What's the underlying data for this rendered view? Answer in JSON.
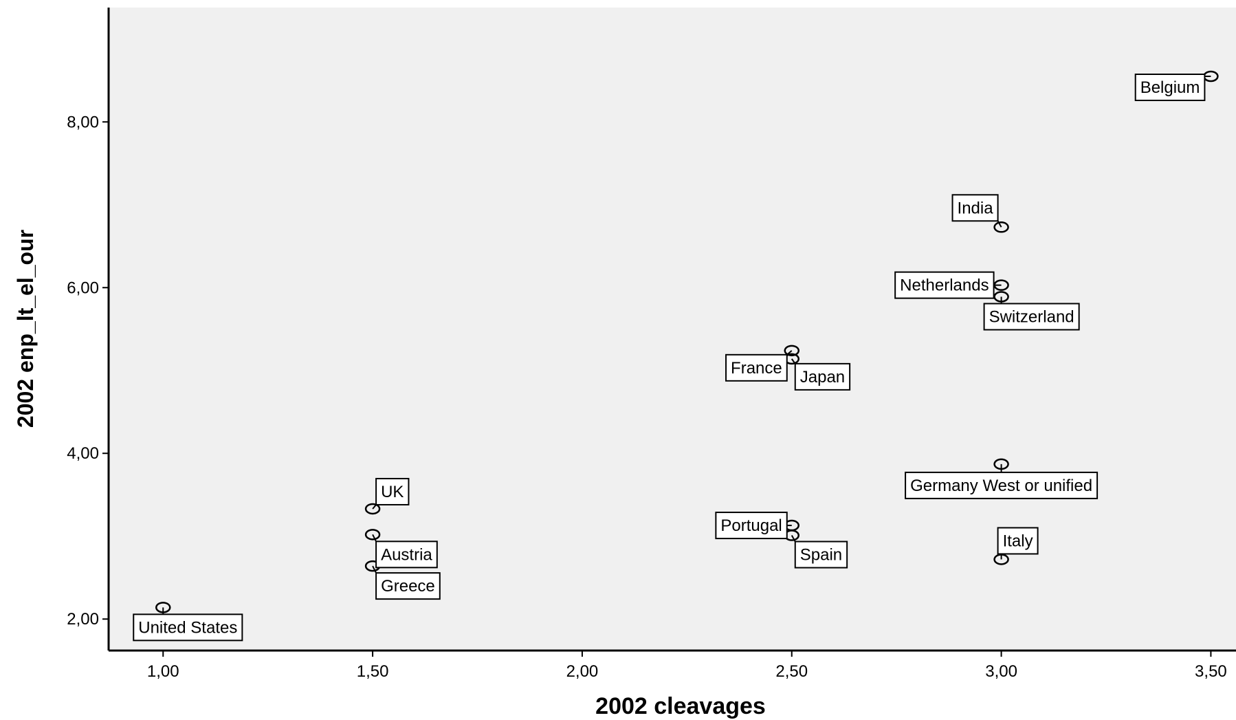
{
  "chart_data": {
    "type": "scatter",
    "xlabel": "2002 cleavages",
    "ylabel": "2002 enp_lt_el_our",
    "xlim": [
      0.87,
      3.56
    ],
    "ylim": [
      1.62,
      9.38
    ],
    "x_ticks": [
      "1,00",
      "1,50",
      "2,00",
      "2,50",
      "3,00",
      "3,50"
    ],
    "y_ticks": [
      "2,00",
      "4,00",
      "6,00",
      "8,00"
    ],
    "grid": false,
    "plot_background": "#f0f0f0",
    "marker_color": "#000000",
    "points": [
      {
        "label": "Belgium",
        "x": 3.5,
        "y": 8.55
      },
      {
        "label": "India",
        "x": 3.0,
        "y": 6.73
      },
      {
        "label": "Netherlands",
        "x": 3.0,
        "y": 6.03
      },
      {
        "label": "Switzerland",
        "x": 3.0,
        "y": 5.89
      },
      {
        "label": "France",
        "x": 2.5,
        "y": 5.24
      },
      {
        "label": "Japan",
        "x": 2.5,
        "y": 5.14
      },
      {
        "label": "Germany West or unified",
        "x": 3.0,
        "y": 3.87
      },
      {
        "label": "UK",
        "x": 1.5,
        "y": 3.33
      },
      {
        "label": "Portugal",
        "x": 2.5,
        "y": 3.13
      },
      {
        "label": "Spain",
        "x": 2.5,
        "y": 3.01
      },
      {
        "label": "Austria",
        "x": 1.5,
        "y": 3.02
      },
      {
        "label": "Italy",
        "x": 3.0,
        "y": 2.72
      },
      {
        "label": "Greece",
        "x": 1.5,
        "y": 2.64
      },
      {
        "label": "United States",
        "x": 1.0,
        "y": 2.14
      }
    ]
  }
}
